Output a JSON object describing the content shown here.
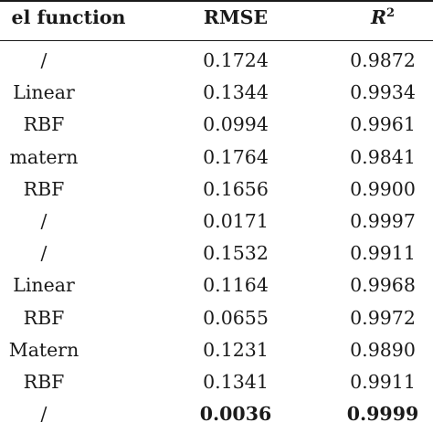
{
  "header": {
    "col_function": "el function",
    "col_rmse": "RMSE",
    "col_r2_base": "R",
    "col_r2_sup": "2"
  },
  "rows": [
    {
      "function": "/",
      "rmse": "0.1724",
      "r2": "0.9872"
    },
    {
      "function": "Linear",
      "rmse": "0.1344",
      "r2": "0.9934"
    },
    {
      "function": "RBF",
      "rmse": "0.0994",
      "r2": "0.9961"
    },
    {
      "function": "matern",
      "rmse": "0.1764",
      "r2": "0.9841"
    },
    {
      "function": "RBF",
      "rmse": "0.1656",
      "r2": "0.9900"
    },
    {
      "function": "/",
      "rmse": "0.0171",
      "r2": "0.9997"
    },
    {
      "function": "/",
      "rmse": "0.1532",
      "r2": "0.9911"
    },
    {
      "function": "Linear",
      "rmse": "0.1164",
      "r2": "0.9968"
    },
    {
      "function": "RBF",
      "rmse": "0.0655",
      "r2": "0.9972"
    },
    {
      "function": "Matern",
      "rmse": "0.1231",
      "r2": "0.9890"
    },
    {
      "function": "RBF",
      "rmse": "0.1341",
      "r2": "0.9911"
    },
    {
      "function": "/",
      "rmse": "0.0036",
      "r2": "0.9999",
      "bold": true
    }
  ]
}
